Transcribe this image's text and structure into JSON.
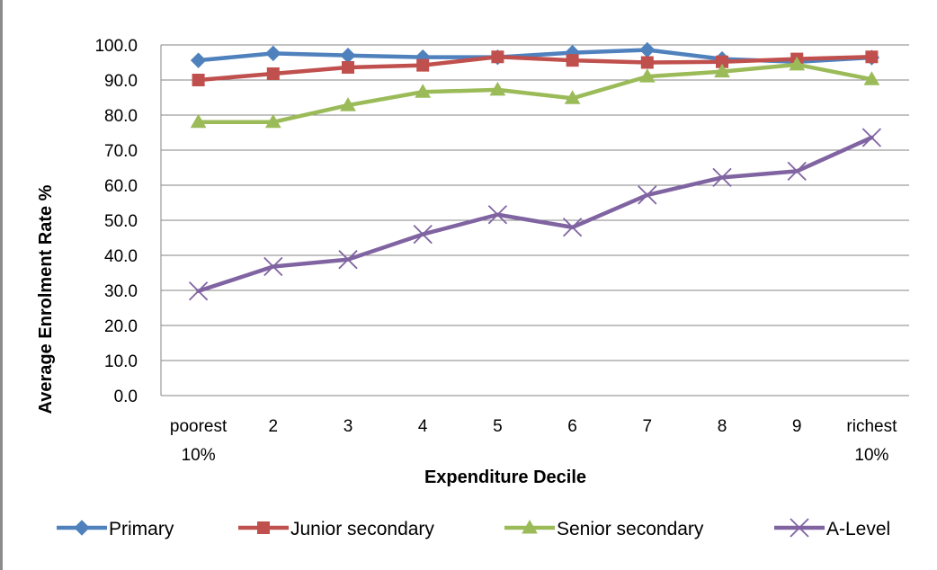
{
  "chart_data": {
    "type": "line",
    "xlabel": "Expenditure Decile",
    "ylabel": "Average Enrolment Rate %",
    "ylim": [
      0,
      100
    ],
    "y_ticks": [
      "0.0",
      "10.0",
      "20.0",
      "30.0",
      "40.0",
      "50.0",
      "60.0",
      "70.0",
      "80.0",
      "90.0",
      "100.0"
    ],
    "grid": true,
    "legend_position": "bottom",
    "categories": [
      [
        "poorest",
        "10%"
      ],
      [
        "2"
      ],
      [
        "3"
      ],
      [
        "4"
      ],
      [
        "5"
      ],
      [
        "6"
      ],
      [
        "7"
      ],
      [
        "8"
      ],
      [
        "9"
      ],
      [
        "richest",
        "10%"
      ]
    ],
    "series": [
      {
        "name": "Primary",
        "color": "#4f81bd",
        "marker": "diamond",
        "values": [
          95.6,
          97.6,
          97.0,
          96.5,
          96.5,
          97.8,
          98.6,
          96.0,
          95.2,
          96.4
        ]
      },
      {
        "name": "Junior secondary",
        "color": "#c0504d",
        "marker": "square",
        "values": [
          90.0,
          91.8,
          93.6,
          94.2,
          96.6,
          95.6,
          95.0,
          95.2,
          96.0,
          96.6
        ]
      },
      {
        "name": "Senior secondary",
        "color": "#9bbb59",
        "marker": "triangle",
        "values": [
          78.0,
          78.0,
          82.8,
          86.6,
          87.2,
          84.8,
          91.0,
          92.4,
          94.4,
          90.2
        ]
      },
      {
        "name": "A-Level",
        "color": "#8064a2",
        "marker": "x",
        "values": [
          29.8,
          36.8,
          38.8,
          46.0,
          51.6,
          48.0,
          57.2,
          62.2,
          64.0,
          73.6
        ]
      }
    ]
  }
}
